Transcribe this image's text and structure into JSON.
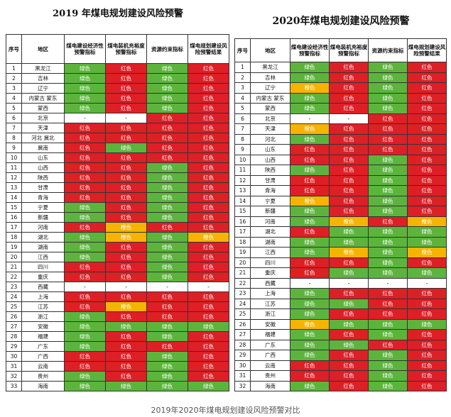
{
  "palette": {
    "绿色": "#5cb43c",
    "红色": "#dd1f26",
    "橙色": "#f5b400"
  },
  "tables": [
    {
      "title": "2019 年煤电规划建设风险预警",
      "headers": [
        "序号",
        "地区",
        "煤电建设经济性预警指标",
        "煤电装机充裕度预警指标",
        "资源约束指标",
        "煤电规划建设风险预警结果"
      ],
      "rows": [
        [
          "1",
          "黑龙江",
          "绿色",
          "红色",
          "绿色",
          "红色"
        ],
        [
          "2",
          "吉林",
          "绿色",
          "红色",
          "绿色",
          "红色"
        ],
        [
          "3",
          "辽宁",
          "绿色",
          "红色",
          "绿色",
          "红色"
        ],
        [
          "4",
          "内蒙古 蒙东",
          "绿色",
          "红色",
          "绿色",
          "红色"
        ],
        [
          "5",
          "蒙西",
          "绿色",
          "红色",
          "绿色",
          "红色"
        ],
        [
          "6",
          "北京",
          "-",
          "-",
          "红色",
          "红色"
        ],
        [
          "7",
          "天津",
          "红色",
          "红色",
          "红色",
          "红色"
        ],
        [
          "8",
          "河北 冀北",
          "红色",
          "红色",
          "红色",
          "红色"
        ],
        [
          "9",
          "冀南",
          "红色",
          "绿色",
          "红色",
          "红色"
        ],
        [
          "10",
          "山东",
          "红色",
          "红色",
          "红色",
          "红色"
        ],
        [
          "11",
          "山西",
          "红色",
          "红色",
          "绿色",
          "红色"
        ],
        [
          "12",
          "陕西",
          "红色",
          "红色",
          "绿色",
          "红色"
        ],
        [
          "13",
          "甘肃",
          "红色",
          "红色",
          "绿色",
          "红色"
        ],
        [
          "14",
          "青海",
          "红色",
          "红色",
          "绿色",
          "红色"
        ],
        [
          "15",
          "宁夏",
          "绿色",
          "红色",
          "绿色",
          "红色"
        ],
        [
          "16",
          "新疆",
          "绿色",
          "红色",
          "绿色",
          "红色"
        ],
        [
          "17",
          "河南",
          "红色",
          "橙色",
          "红色",
          "红色"
        ],
        [
          "18",
          "湖北",
          "绿色",
          "橙色",
          "绿色",
          "橙色"
        ],
        [
          "19",
          "湖南",
          "绿色",
          "红色",
          "绿色",
          "红色"
        ],
        [
          "20",
          "江西",
          "绿色",
          "红色",
          "绿色",
          "红色"
        ],
        [
          "21",
          "四川",
          "红色",
          "红色",
          "绿色",
          "红色"
        ],
        [
          "22",
          "重庆",
          "红色",
          "红色",
          "绿色",
          "红色"
        ],
        [
          "23",
          "西藏",
          "-",
          "-",
          "-",
          "-"
        ],
        [
          "24",
          "上海",
          "红色",
          "红色",
          "红色",
          "红色"
        ],
        [
          "25",
          "江苏",
          "红色",
          "橙色",
          "红色",
          "红色"
        ],
        [
          "26",
          "浙江",
          "绿色",
          "红色",
          "红色",
          "红色"
        ],
        [
          "27",
          "安徽",
          "绿色",
          "绿色",
          "绿色",
          "绿色"
        ],
        [
          "28",
          "福建",
          "绿色",
          "红色",
          "绿色",
          "红色"
        ],
        [
          "29",
          "广东",
          "绿色",
          "红色",
          "红色",
          "红色"
        ],
        [
          "30",
          "广西",
          "红色",
          "红色",
          "绿色",
          "红色"
        ],
        [
          "31",
          "云南",
          "红色",
          "红色",
          "绿色",
          "红色"
        ],
        [
          "32",
          "贵州",
          "绿色",
          "红色",
          "绿色",
          "红色"
        ],
        [
          "33",
          "海南",
          "绿色",
          "绿色",
          "绿色",
          "绿色"
        ]
      ]
    },
    {
      "title": "2020年煤电规划建设风险预警",
      "headers": [
        "序号",
        "地区",
        "煤电建设经济性预警指标",
        "煤电装机充裕度预警指标",
        "资源约束指标",
        "煤电规划建设风险预警结果"
      ],
      "rows": [
        [
          "1",
          "黑龙江",
          "绿色",
          "红色",
          "绿色",
          "红色"
        ],
        [
          "2",
          "吉林",
          "绿色",
          "红色",
          "绿色",
          "红色"
        ],
        [
          "3",
          "辽宁",
          "橙色",
          "红色",
          "绿色",
          "红色"
        ],
        [
          "4",
          "内蒙古 蒙东",
          "绿色",
          "红色",
          "绿色",
          "红色"
        ],
        [
          "5",
          "蒙西",
          "绿色",
          "红色",
          "绿色",
          "红色"
        ],
        [
          "6",
          "北京",
          "-",
          "-",
          "红色",
          "红色"
        ],
        [
          "7",
          "天津",
          "橙色",
          "红色",
          "红色",
          "红色"
        ],
        [
          "8",
          "河北",
          "绿色",
          "红色",
          "红色",
          "红色"
        ],
        [
          "9",
          "山东",
          "红色",
          "红色",
          "红色",
          "红色"
        ],
        [
          "10",
          "山西",
          "红色",
          "红色",
          "绿色",
          "红色"
        ],
        [
          "11",
          "陕西",
          "绿色",
          "红色",
          "绿色",
          "红色"
        ],
        [
          "12",
          "甘肃",
          "红色",
          "红色",
          "绿色",
          "红色"
        ],
        [
          "13",
          "青海",
          "红色",
          "红色",
          "绿色",
          "红色"
        ],
        [
          "14",
          "宁夏",
          "橙色",
          "红色",
          "绿色",
          "红色"
        ],
        [
          "15",
          "新疆",
          "绿色",
          "红色",
          "绿色",
          "红色"
        ],
        [
          "16",
          "河南",
          "绿色",
          "橙色",
          "红色",
          "橙色"
        ],
        [
          "17",
          "湖北",
          "红色",
          "绿色",
          "绿色",
          "绿色"
        ],
        [
          "18",
          "湖南",
          "绿色",
          "绿色",
          "绿色",
          "绿色"
        ],
        [
          "19",
          "江西",
          "绿色",
          "橙色",
          "绿色",
          "橙色"
        ],
        [
          "20",
          "四川",
          "红色",
          "红色",
          "绿色",
          "红色"
        ],
        [
          "21",
          "重庆",
          "红色",
          "绿色",
          "绿色",
          "绿色"
        ],
        [
          "22",
          "西藏",
          "-",
          "-",
          "-",
          "-"
        ],
        [
          "23",
          "上海",
          "绿色",
          "红色",
          "红色",
          "红色"
        ],
        [
          "24",
          "江苏",
          "绿色",
          "绿色",
          "红色",
          "红色"
        ],
        [
          "25",
          "浙江",
          "绿色",
          "红色",
          "红色",
          "红色"
        ],
        [
          "26",
          "安徽",
          "橙色",
          "绿色",
          "绿色",
          "绿色"
        ],
        [
          "27",
          "福建",
          "绿色",
          "红色",
          "绿色",
          "红色"
        ],
        [
          "28",
          "广东",
          "绿色",
          "绿色",
          "红色",
          "红色"
        ],
        [
          "29",
          "广西",
          "绿色",
          "红色",
          "绿色",
          "红色"
        ],
        [
          "30",
          "云南",
          "红色",
          "红色",
          "绿色",
          "红色"
        ],
        [
          "31",
          "贵州",
          "红色",
          "红色",
          "绿色",
          "红色"
        ],
        [
          "32",
          "海南",
          "绿色",
          "红色",
          "绿色",
          "红色"
        ]
      ]
    }
  ],
  "caption": "2019年2020年煤电规划建设风险预警对比"
}
